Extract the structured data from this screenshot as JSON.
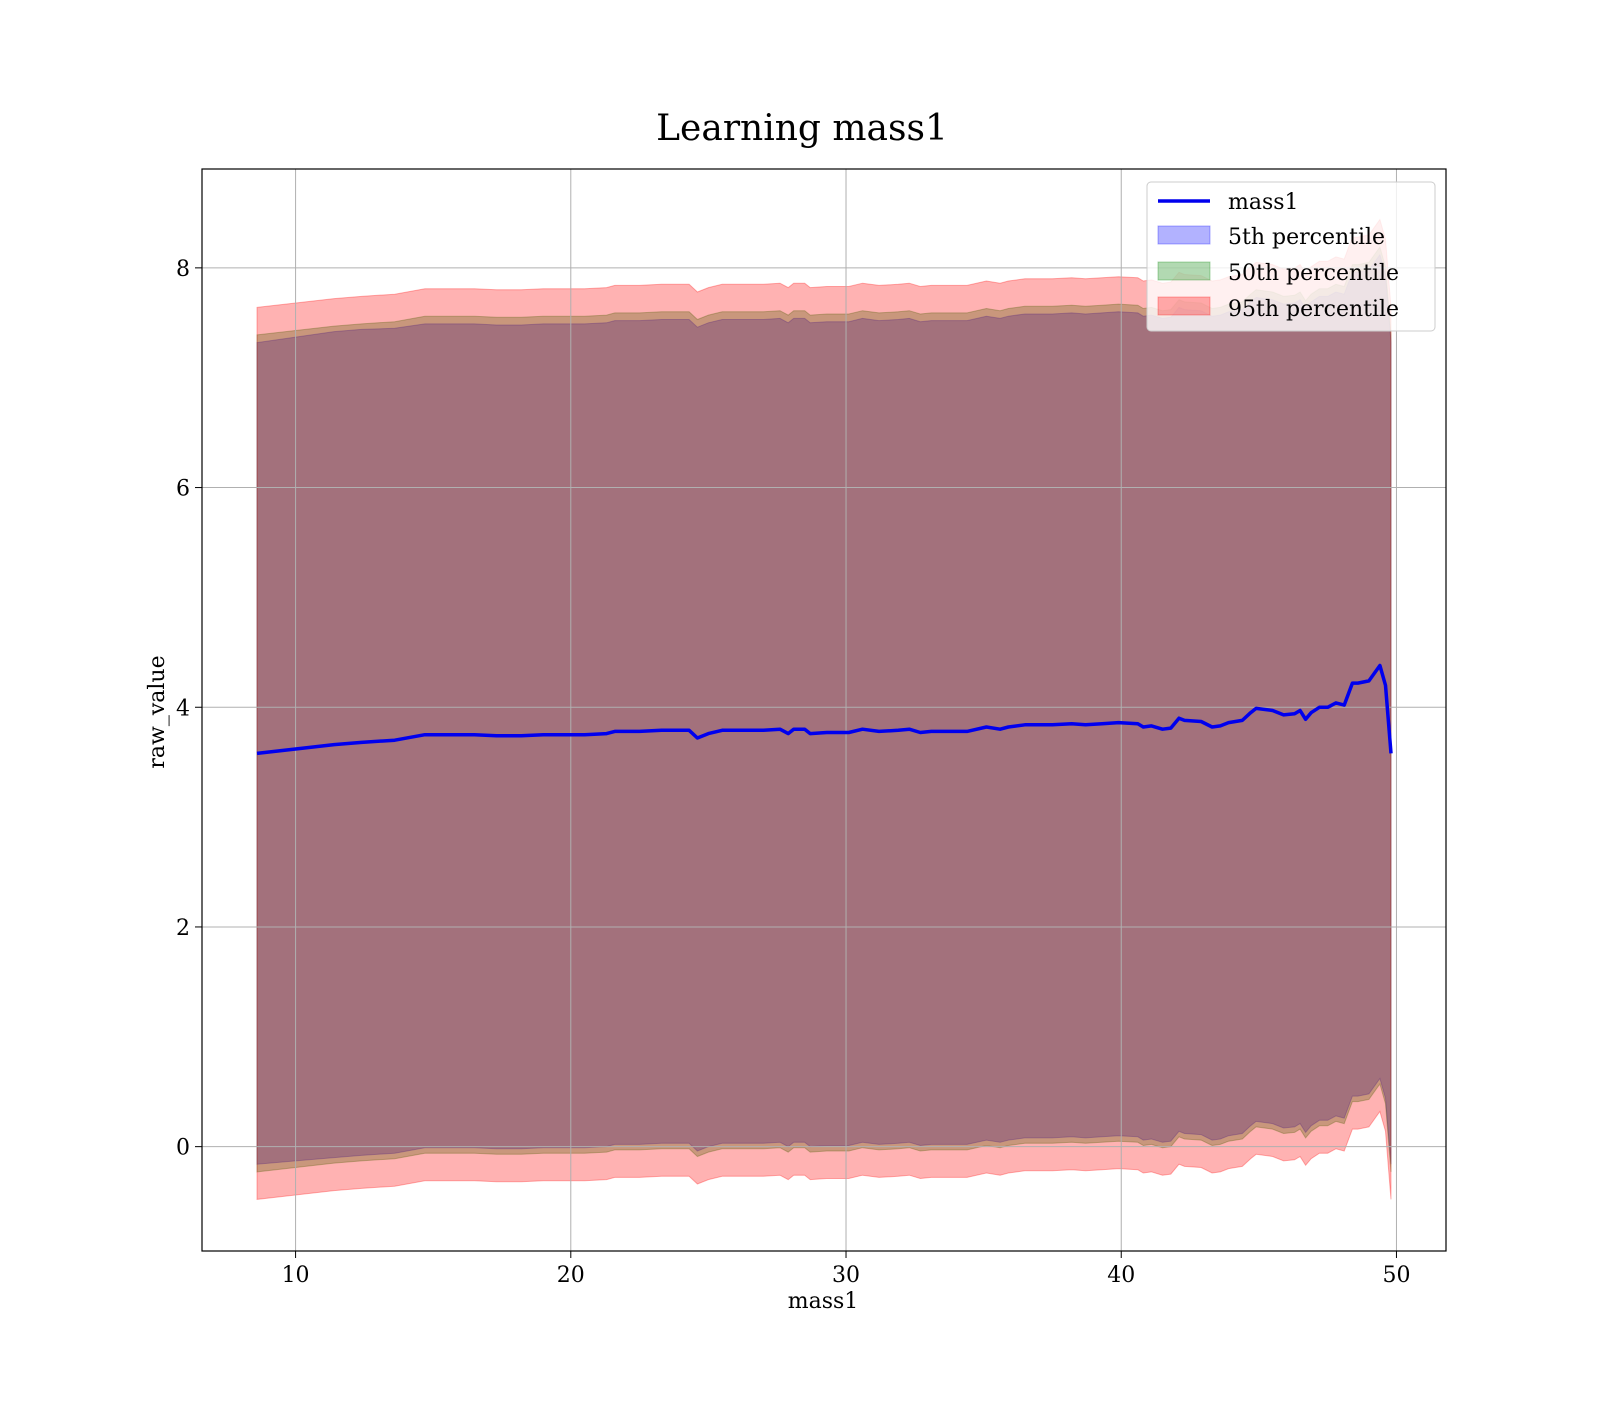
{
  "chart_data": {
    "type": "line",
    "title": "Learning mass1",
    "xlabel": "mass1",
    "ylabel": "raw_value",
    "xlim": [
      6.6,
      51.8
    ],
    "ylim": [
      -0.95,
      8.9
    ],
    "xticks": [
      "10",
      "20",
      "30",
      "40",
      "50"
    ],
    "yticks": [
      "0",
      "2",
      "4",
      "6",
      "8"
    ],
    "grid": true,
    "legend_position": "upper right",
    "legend": [
      "mass1",
      "5th percentile",
      "50th percentile",
      "95th percentile"
    ],
    "colors": {
      "line": "#0000ee",
      "band_5th": "#0000ff",
      "band_50th": "#008000",
      "band_95th": "#ff0000"
    },
    "x": [
      8.6,
      10.0,
      11.4,
      12.4,
      13.6,
      14.7,
      15.6,
      16.5,
      17.3,
      18.2,
      19.0,
      19.8,
      20.5,
      21.3,
      21.6,
      22.5,
      23.3,
      24.3,
      24.6,
      25.0,
      25.5,
      26.2,
      27.0,
      27.6,
      27.9,
      28.1,
      28.5,
      28.7,
      29.3,
      30.1,
      30.6,
      31.2,
      31.9,
      32.3,
      32.7,
      33.1,
      33.7,
      34.4,
      35.1,
      35.6,
      35.9,
      36.5,
      37.0,
      37.5,
      38.2,
      38.7,
      39.3,
      39.9,
      40.6,
      40.8,
      41.1,
      41.5,
      41.8,
      42.1,
      42.3,
      42.9,
      43.3,
      43.6,
      43.9,
      44.4,
      44.7,
      44.9,
      45.5,
      45.9,
      46.3,
      46.5,
      46.7,
      46.9,
      47.2,
      47.5,
      47.8,
      48.1,
      48.4,
      48.6,
      49.0,
      49.4,
      49.6,
      49.8
    ],
    "series": [
      {
        "name": "mass1",
        "values": [
          3.58,
          3.62,
          3.66,
          3.68,
          3.7,
          3.75,
          3.75,
          3.75,
          3.74,
          3.74,
          3.75,
          3.75,
          3.75,
          3.76,
          3.78,
          3.78,
          3.79,
          3.79,
          3.72,
          3.76,
          3.79,
          3.79,
          3.79,
          3.8,
          3.76,
          3.8,
          3.8,
          3.76,
          3.77,
          3.77,
          3.8,
          3.78,
          3.79,
          3.8,
          3.77,
          3.78,
          3.78,
          3.78,
          3.82,
          3.8,
          3.82,
          3.84,
          3.84,
          3.84,
          3.85,
          3.84,
          3.85,
          3.86,
          3.85,
          3.82,
          3.83,
          3.8,
          3.81,
          3.9,
          3.88,
          3.87,
          3.82,
          3.83,
          3.86,
          3.88,
          3.95,
          3.99,
          3.97,
          3.93,
          3.94,
          3.97,
          3.89,
          3.95,
          4.0,
          4.0,
          4.04,
          4.02,
          4.22,
          4.22,
          4.24,
          4.38,
          4.2,
          3.58
        ]
      },
      {
        "name": "5th percentile",
        "upper": [
          7.32,
          7.37,
          7.42,
          7.44,
          7.45,
          7.49,
          7.49,
          7.49,
          7.48,
          7.48,
          7.49,
          7.49,
          7.49,
          7.5,
          7.52,
          7.52,
          7.53,
          7.53,
          7.46,
          7.5,
          7.53,
          7.53,
          7.53,
          7.54,
          7.5,
          7.54,
          7.54,
          7.5,
          7.51,
          7.51,
          7.54,
          7.52,
          7.53,
          7.54,
          7.51,
          7.52,
          7.52,
          7.52,
          7.56,
          7.54,
          7.56,
          7.58,
          7.58,
          7.58,
          7.59,
          7.58,
          7.59,
          7.6,
          7.59,
          7.56,
          7.57,
          7.54,
          7.55,
          7.64,
          7.62,
          7.61,
          7.56,
          7.57,
          7.6,
          7.62,
          7.69,
          7.73,
          7.71,
          7.67,
          7.68,
          7.71,
          7.63,
          7.69,
          7.74,
          7.74,
          7.78,
          7.76,
          7.96,
          7.96,
          7.98,
          8.12,
          7.94,
          7.32
        ],
        "lower": [
          -0.16,
          -0.13,
          -0.1,
          -0.08,
          -0.06,
          -0.01,
          -0.01,
          -0.01,
          -0.02,
          -0.02,
          -0.01,
          -0.01,
          -0.01,
          0.0,
          0.02,
          0.02,
          0.03,
          0.03,
          -0.04,
          0.0,
          0.03,
          0.03,
          0.03,
          0.04,
          0.0,
          0.04,
          0.04,
          0.0,
          0.01,
          0.01,
          0.04,
          0.02,
          0.03,
          0.04,
          0.01,
          0.02,
          0.02,
          0.02,
          0.06,
          0.04,
          0.06,
          0.08,
          0.08,
          0.08,
          0.09,
          0.08,
          0.09,
          0.1,
          0.09,
          0.06,
          0.07,
          0.04,
          0.05,
          0.14,
          0.12,
          0.11,
          0.06,
          0.07,
          0.1,
          0.12,
          0.19,
          0.23,
          0.21,
          0.17,
          0.18,
          0.21,
          0.13,
          0.19,
          0.24,
          0.24,
          0.28,
          0.26,
          0.46,
          0.46,
          0.48,
          0.62,
          0.44,
          -0.16
        ]
      },
      {
        "name": "50th percentile",
        "upper": [
          7.39,
          7.43,
          7.47,
          7.49,
          7.51,
          7.56,
          7.56,
          7.56,
          7.55,
          7.55,
          7.56,
          7.56,
          7.56,
          7.57,
          7.59,
          7.59,
          7.6,
          7.6,
          7.53,
          7.57,
          7.6,
          7.6,
          7.6,
          7.61,
          7.57,
          7.61,
          7.61,
          7.57,
          7.58,
          7.58,
          7.61,
          7.59,
          7.6,
          7.61,
          7.58,
          7.59,
          7.59,
          7.59,
          7.63,
          7.61,
          7.63,
          7.65,
          7.65,
          7.65,
          7.66,
          7.65,
          7.66,
          7.67,
          7.66,
          7.63,
          7.64,
          7.61,
          7.62,
          7.71,
          7.69,
          7.68,
          7.63,
          7.64,
          7.67,
          7.69,
          7.76,
          7.8,
          7.78,
          7.74,
          7.75,
          7.78,
          7.7,
          7.76,
          7.81,
          7.81,
          7.85,
          7.83,
          8.03,
          8.03,
          8.05,
          8.19,
          8.01,
          7.39
        ],
        "lower": [
          -0.23,
          -0.19,
          -0.15,
          -0.13,
          -0.11,
          -0.06,
          -0.06,
          -0.06,
          -0.07,
          -0.07,
          -0.06,
          -0.06,
          -0.06,
          -0.05,
          -0.03,
          -0.03,
          -0.02,
          -0.02,
          -0.09,
          -0.05,
          -0.02,
          -0.02,
          -0.02,
          -0.01,
          -0.05,
          -0.01,
          -0.01,
          -0.05,
          -0.04,
          -0.04,
          -0.01,
          -0.03,
          -0.02,
          -0.01,
          -0.04,
          -0.03,
          -0.03,
          -0.03,
          0.01,
          -0.01,
          0.01,
          0.03,
          0.03,
          0.03,
          0.04,
          0.03,
          0.04,
          0.05,
          0.04,
          0.01,
          0.02,
          -0.01,
          0.0,
          0.09,
          0.07,
          0.06,
          0.01,
          0.02,
          0.05,
          0.07,
          0.14,
          0.18,
          0.16,
          0.12,
          0.13,
          0.16,
          0.08,
          0.14,
          0.19,
          0.19,
          0.23,
          0.21,
          0.41,
          0.41,
          0.43,
          0.57,
          0.39,
          -0.23
        ]
      },
      {
        "name": "95th percentile",
        "upper": [
          7.64,
          7.68,
          7.72,
          7.74,
          7.76,
          7.81,
          7.81,
          7.81,
          7.8,
          7.8,
          7.81,
          7.81,
          7.81,
          7.82,
          7.84,
          7.84,
          7.85,
          7.85,
          7.78,
          7.82,
          7.85,
          7.85,
          7.85,
          7.86,
          7.82,
          7.86,
          7.86,
          7.82,
          7.83,
          7.83,
          7.86,
          7.84,
          7.85,
          7.86,
          7.83,
          7.84,
          7.84,
          7.84,
          7.88,
          7.86,
          7.88,
          7.9,
          7.9,
          7.9,
          7.91,
          7.9,
          7.91,
          7.92,
          7.91,
          7.88,
          7.89,
          7.86,
          7.87,
          7.96,
          7.94,
          7.93,
          7.88,
          7.89,
          7.92,
          7.94,
          8.01,
          8.05,
          8.03,
          7.99,
          8.0,
          8.03,
          7.95,
          8.01,
          8.06,
          8.06,
          8.1,
          8.08,
          8.28,
          8.28,
          8.3,
          8.44,
          8.26,
          7.64
        ],
        "lower": [
          -0.48,
          -0.44,
          -0.4,
          -0.38,
          -0.36,
          -0.31,
          -0.31,
          -0.31,
          -0.32,
          -0.32,
          -0.31,
          -0.31,
          -0.31,
          -0.3,
          -0.28,
          -0.28,
          -0.27,
          -0.27,
          -0.34,
          -0.3,
          -0.27,
          -0.27,
          -0.27,
          -0.26,
          -0.3,
          -0.26,
          -0.26,
          -0.3,
          -0.29,
          -0.29,
          -0.26,
          -0.28,
          -0.27,
          -0.26,
          -0.29,
          -0.28,
          -0.28,
          -0.28,
          -0.24,
          -0.26,
          -0.24,
          -0.22,
          -0.22,
          -0.22,
          -0.21,
          -0.22,
          -0.21,
          -0.2,
          -0.21,
          -0.24,
          -0.23,
          -0.26,
          -0.25,
          -0.16,
          -0.18,
          -0.19,
          -0.24,
          -0.23,
          -0.2,
          -0.18,
          -0.11,
          -0.07,
          -0.09,
          -0.13,
          -0.12,
          -0.09,
          -0.17,
          -0.11,
          -0.06,
          -0.06,
          -0.02,
          -0.04,
          0.16,
          0.16,
          0.18,
          0.32,
          0.14,
          -0.48
        ]
      }
    ]
  }
}
